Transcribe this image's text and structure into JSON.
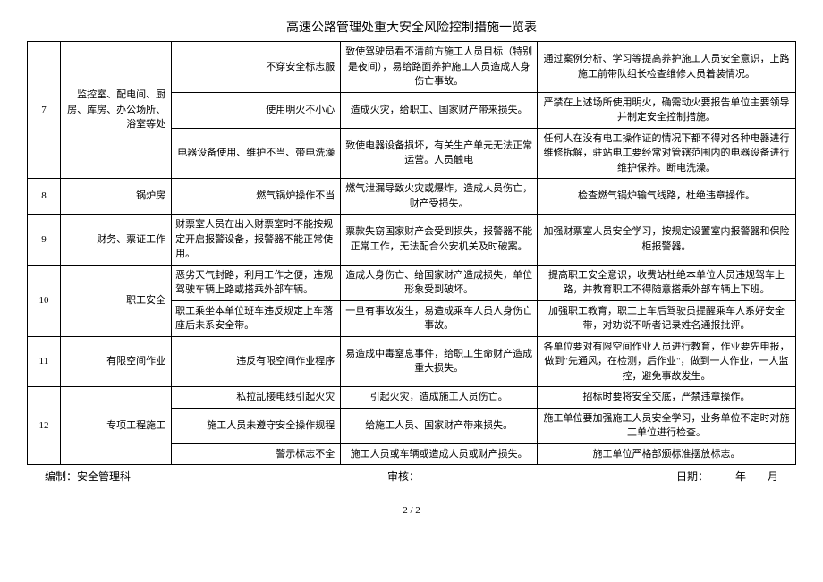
{
  "title": "高速公路管理处重大安全风险控制措施一览表",
  "footer": {
    "left": "编制：安全管理科",
    "mid": "审核：",
    "right": "日期：　　　年　　月"
  },
  "page": "2 / 2",
  "rows": [
    {
      "num": "",
      "place": "",
      "item": "不穿安全标志服",
      "risk": "致使驾驶员看不清前方施工人员目标（特别是夜间），易给路面养护施工人员造成人身伤亡事故。",
      "ctrl": "通过案例分析、学习等提高养护施工人员安全意识，上路施工前带队组长检查维修人员着装情况。"
    },
    {
      "num": "7",
      "place": "监控室、配电间、厨房、库房、办公场所、浴室等处",
      "item": "使用明火不小心",
      "risk": "造成火灾，给职工、国家财产带来损失。",
      "ctrl": "严禁在上述场所使用明火，确需动火要报告单位主要领导并制定安全控制措施。"
    },
    {
      "item": "电器设备使用、维护不当、带电洗澡",
      "risk": "致使电器设备损坏，有关生产单元无法正常运营。人员触电",
      "ctrl": "任何人在没有电工操作证的情况下都不得对各种电器进行维修拆解，驻站电工要经常对管辖范围内的电器设备进行维护保养。断电洗澡。"
    },
    {
      "num": "8",
      "place": "锅炉房",
      "item": "燃气锅炉操作不当",
      "risk": "燃气泄漏导致火灾或爆炸，造成人员伤亡，财产受损失。",
      "ctrl": "检查燃气锅炉输气线路，杜绝违章操作。"
    },
    {
      "num": "9",
      "place": "财务、票证工作",
      "item": "财票室人员在出入财票室时不能按规定开启报警设备，报警器不能正常使用。",
      "risk": "票款失窃国家财产会受到损失，报警器不能正常工作，无法配合公安机关及时破案。",
      "ctrl": "加强财票室人员安全学习，按规定设置室内报警器和保险柜报警器。"
    },
    {
      "num": "10",
      "place": "职工安全",
      "item": "恶劣天气封路，利用工作之便，违规驾驶车辆上路或搭乘外部车辆。",
      "risk": "造成人身伤亡、给国家财产造成损失，单位形象受到破坏。",
      "ctrl": "提高职工安全意识，收费站杜绝本单位人员违规驾车上路，并教育职工不得随意搭乘外部车辆上下班。"
    },
    {
      "item": "职工乘坐本单位班车违反规定上车落座后未系安全带。",
      "risk": "一旦有事故发生，易造成乘车人员人身伤亡事故。",
      "ctrl": "加强职工教育，职工上车后驾驶员提醒乘车人系好安全带，对劝说不听者记录姓名通报批评。"
    },
    {
      "num": "11",
      "place": "有限空间作业",
      "item": "违反有限空间作业程序",
      "risk": "易造成中毒窒息事件，给职工生命财产造成重大损失。",
      "ctrl": "各单位要对有限空间作业人员进行教育，作业要先申报，做到\"先通风，在检测，后作业\"，做到一人作业，一人监控，避免事故发生。"
    },
    {
      "num": "12",
      "place": "专项工程施工",
      "item": "私拉乱接电线引起火灾",
      "risk": "引起火灾，造成施工人员伤亡。",
      "ctrl": "招标时要将安全交底，严禁违章操作。"
    },
    {
      "item": "施工人员未遵守安全操作规程",
      "risk": "给施工人员、国家财产带来损失。",
      "ctrl": "施工单位要加强施工人员安全学习，业务单位不定时对施工单位进行检查。"
    },
    {
      "item": "警示标志不全",
      "risk": "施工人员或车辆或造成人员或财产损失。",
      "ctrl": "施工单位严格部颁标准摆放标志。"
    }
  ]
}
